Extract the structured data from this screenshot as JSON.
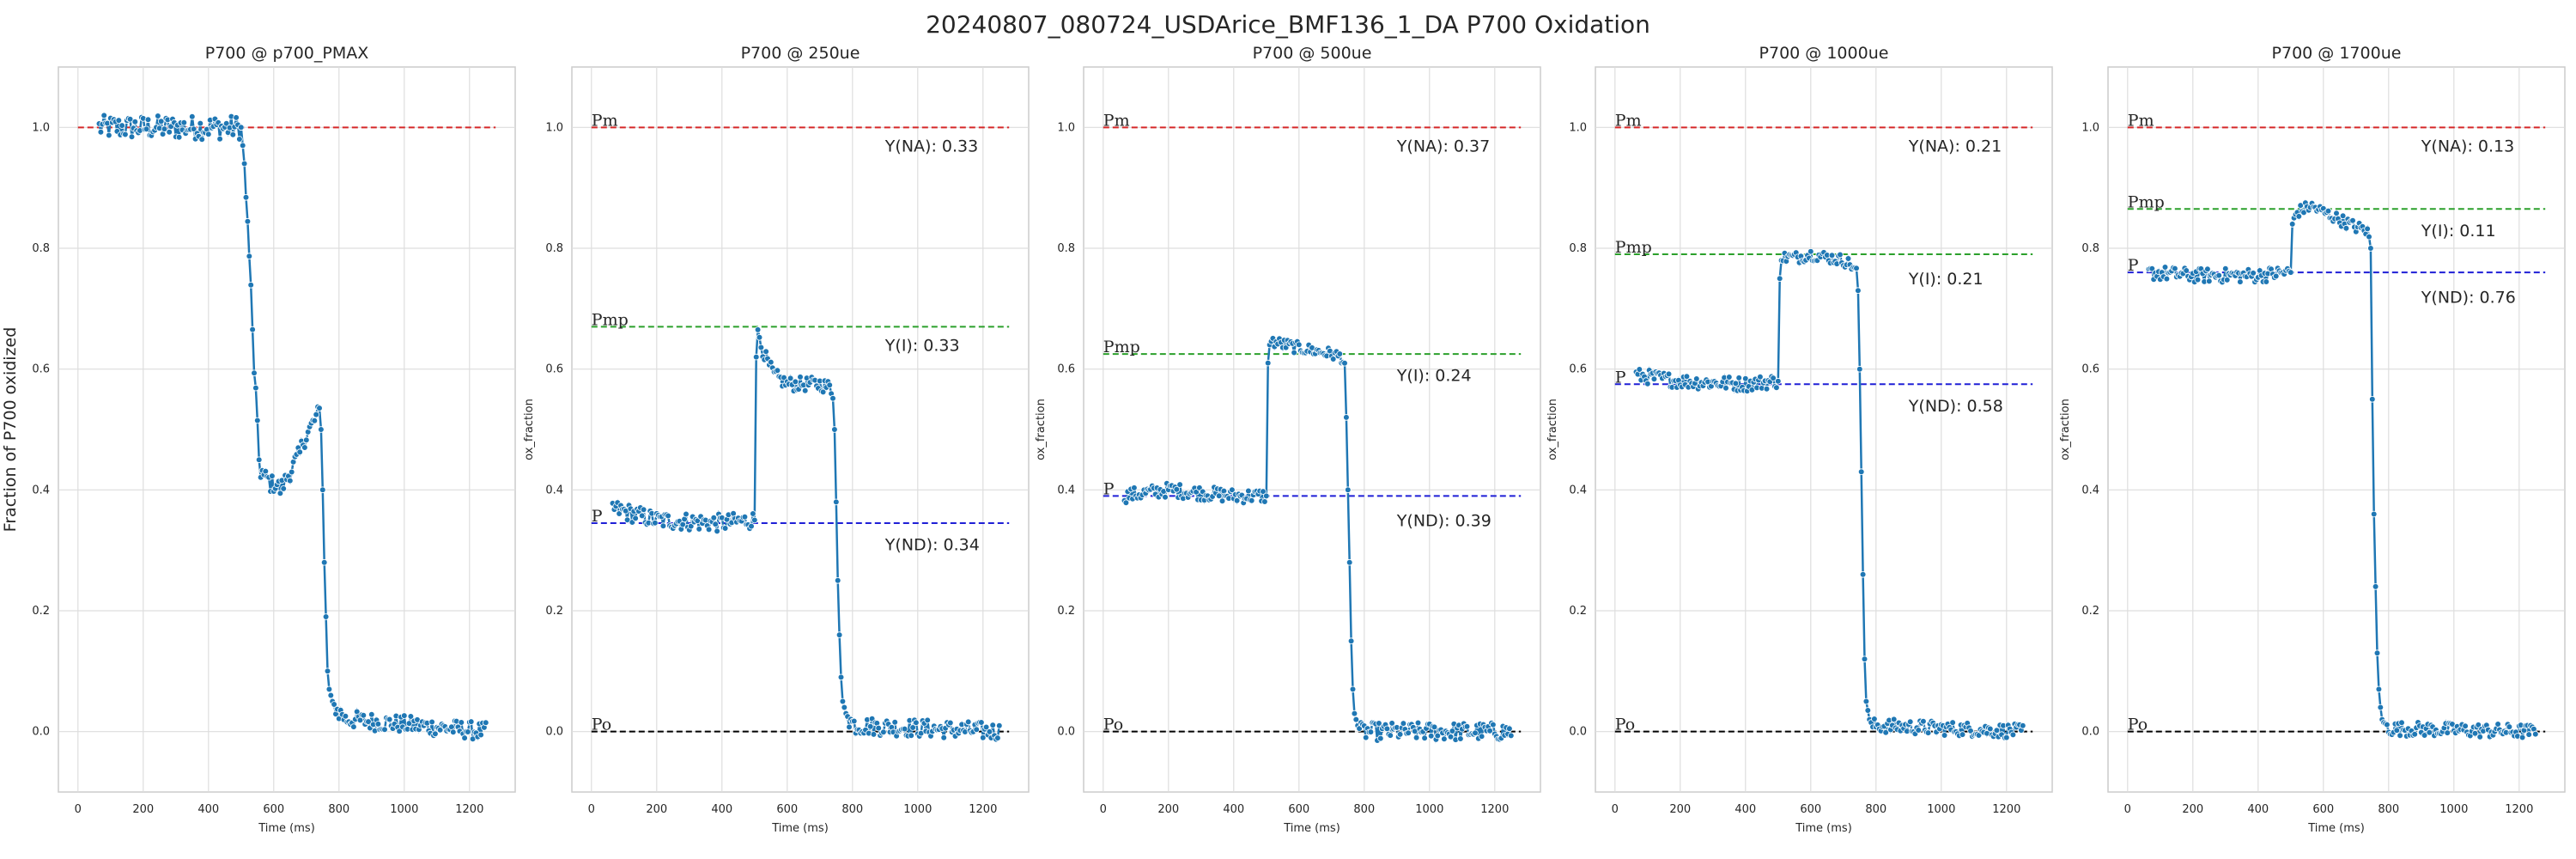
{
  "figure": {
    "title": "20240807_080724_USDArice_BMF136_1_DA P700 Oxidation"
  },
  "colors": {
    "data_line": "#1f77b4",
    "data_marker_edge": "#ffffff",
    "Pm": "#d62728",
    "Pmp": "#2ca02c",
    "P": "#1f1fd6",
    "Po": "#000000",
    "grid": "#dddddd",
    "axes_edge": "#cccccc",
    "text": "#262626"
  },
  "chart_data": [
    {
      "type": "line",
      "title": "P700 @ p700_PMAX",
      "xlabel": "Time (ms)",
      "ylabel": "Fraction of P700 oxidized",
      "xlim": [
        -60,
        1340
      ],
      "ylim": [
        -0.1,
        1.1
      ],
      "xticks": [
        0,
        200,
        400,
        600,
        800,
        1000,
        1200
      ],
      "yticks": [
        0.0,
        0.2,
        0.4,
        0.6,
        0.8,
        1.0
      ],
      "grid": true,
      "series": [
        {
          "x": [
            60,
            500,
            505,
            510,
            515,
            520,
            525,
            530,
            535,
            540,
            545,
            550,
            555,
            560,
            565,
            570,
            580,
            590,
            600,
            610,
            620,
            630,
            640,
            650,
            660,
            670,
            680,
            690,
            700,
            710,
            720,
            730,
            740,
            745,
            750,
            755,
            760,
            765,
            770,
            780,
            790,
            800,
            810,
            820,
            830,
            1250
          ],
          "y": [
            1.0,
            1.0,
            0.97,
            0.94,
            0.88,
            0.84,
            0.79,
            0.73,
            0.66,
            0.6,
            0.56,
            0.5,
            0.45,
            0.43,
            0.43,
            0.42,
            0.42,
            0.41,
            0.41,
            0.41,
            0.4,
            0.41,
            0.42,
            0.43,
            0.44,
            0.45,
            0.46,
            0.48,
            0.49,
            0.5,
            0.51,
            0.52,
            0.53,
            0.5,
            0.4,
            0.28,
            0.19,
            0.1,
            0.07,
            0.05,
            0.04,
            0.03,
            0.03,
            0.02,
            0.02,
            0.0
          ],
          "noise": [
            0.02,
            0.015,
            0.015
          ]
        }
      ],
      "reference_lines": [
        {
          "key": "Pm",
          "y": 1.0,
          "label": ""
        }
      ],
      "annotations": []
    },
    {
      "type": "line",
      "title": "P700 @ 250ue",
      "xlabel": "Time (ms)",
      "ylabel": "ox_fraction",
      "xlim": [
        -60,
        1340
      ],
      "ylim": [
        -0.1,
        1.1
      ],
      "xticks": [
        0,
        200,
        400,
        600,
        800,
        1000,
        1200
      ],
      "yticks": [
        0.0,
        0.2,
        0.4,
        0.6,
        0.8,
        1.0
      ],
      "grid": true,
      "series": [
        {
          "x": [
            60,
            200,
            400,
            490,
            500,
            505,
            510,
            520,
            540,
            560,
            600,
            700,
            730,
            740,
            745,
            750,
            755,
            760,
            765,
            770,
            780,
            790,
            800,
            810,
            1250
          ],
          "y": [
            0.37,
            0.35,
            0.345,
            0.35,
            0.35,
            0.62,
            0.665,
            0.64,
            0.61,
            0.59,
            0.575,
            0.575,
            0.57,
            0.56,
            0.5,
            0.38,
            0.25,
            0.16,
            0.09,
            0.05,
            0.03,
            0.02,
            0.015,
            0.01,
            0.0
          ],
          "noise": [
            0.015,
            0.012,
            0.015
          ]
        }
      ],
      "reference_lines": [
        {
          "key": "Pm",
          "y": 1.0,
          "label": "Pm"
        },
        {
          "key": "Pmp",
          "y": 0.67,
          "label": "Pmp"
        },
        {
          "key": "P",
          "y": 0.345,
          "label": "P"
        },
        {
          "key": "Po",
          "y": 0.0,
          "label": "Po"
        }
      ],
      "annotations": [
        {
          "text": "Y(NA): 0.33",
          "x": 900,
          "y": 0.96
        },
        {
          "text": "Y(I): 0.33",
          "x": 900,
          "y": 0.63
        },
        {
          "text": "Y(ND): 0.34",
          "x": 900,
          "y": 0.3
        }
      ]
    },
    {
      "type": "line",
      "title": "P700 @ 500ue",
      "xlabel": "Time (ms)",
      "ylabel": "ox_fraction",
      "xlim": [
        -60,
        1340
      ],
      "ylim": [
        -0.1,
        1.1
      ],
      "xticks": [
        0,
        200,
        400,
        600,
        800,
        1000,
        1200
      ],
      "yticks": [
        0.0,
        0.2,
        0.4,
        0.6,
        0.8,
        1.0
      ],
      "grid": true,
      "series": [
        {
          "x": [
            60,
            200,
            400,
            490,
            500,
            505,
            510,
            520,
            560,
            600,
            700,
            730,
            740,
            745,
            750,
            755,
            760,
            765,
            770,
            780,
            790,
            800,
            1250
          ],
          "y": [
            0.39,
            0.4,
            0.39,
            0.39,
            0.39,
            0.61,
            0.64,
            0.645,
            0.64,
            0.635,
            0.625,
            0.62,
            0.61,
            0.52,
            0.4,
            0.28,
            0.15,
            0.07,
            0.03,
            0.01,
            0.0,
            0.0,
            0.0
          ],
          "noise": [
            0.012,
            0.01,
            0.015
          ]
        }
      ],
      "reference_lines": [
        {
          "key": "Pm",
          "y": 1.0,
          "label": "Pm"
        },
        {
          "key": "Pmp",
          "y": 0.625,
          "label": "Pmp"
        },
        {
          "key": "P",
          "y": 0.39,
          "label": "P"
        },
        {
          "key": "Po",
          "y": 0.0,
          "label": "Po"
        }
      ],
      "annotations": [
        {
          "text": "Y(NA): 0.37",
          "x": 900,
          "y": 0.96
        },
        {
          "text": "Y(I): 0.24",
          "x": 900,
          "y": 0.58
        },
        {
          "text": "Y(ND): 0.39",
          "x": 900,
          "y": 0.34
        }
      ]
    },
    {
      "type": "line",
      "title": "P700 @ 1000ue",
      "xlabel": "Time (ms)",
      "ylabel": "ox_fraction",
      "xlim": [
        -60,
        1340
      ],
      "ylim": [
        -0.1,
        1.1
      ],
      "xticks": [
        0,
        200,
        400,
        600,
        800,
        1000,
        1200
      ],
      "yticks": [
        0.0,
        0.2,
        0.4,
        0.6,
        0.8,
        1.0
      ],
      "grid": true,
      "series": [
        {
          "x": [
            60,
            200,
            400,
            490,
            500,
            505,
            510,
            520,
            560,
            600,
            700,
            730,
            740,
            745,
            750,
            755,
            760,
            765,
            770,
            780,
            790,
            800,
            1250
          ],
          "y": [
            0.59,
            0.58,
            0.575,
            0.58,
            0.58,
            0.75,
            0.78,
            0.785,
            0.785,
            0.79,
            0.78,
            0.77,
            0.76,
            0.73,
            0.6,
            0.43,
            0.26,
            0.12,
            0.05,
            0.02,
            0.01,
            0.01,
            0.0
          ],
          "noise": [
            0.012,
            0.01,
            0.012
          ]
        }
      ],
      "reference_lines": [
        {
          "key": "Pm",
          "y": 1.0,
          "label": "Pm"
        },
        {
          "key": "Pmp",
          "y": 0.79,
          "label": "Pmp"
        },
        {
          "key": "P",
          "y": 0.575,
          "label": "P"
        },
        {
          "key": "Po",
          "y": 0.0,
          "label": "Po"
        }
      ],
      "annotations": [
        {
          "text": "Y(NA): 0.21",
          "x": 900,
          "y": 0.96
        },
        {
          "text": "Y(I): 0.21",
          "x": 900,
          "y": 0.74
        },
        {
          "text": "Y(ND): 0.58",
          "x": 900,
          "y": 0.53
        }
      ]
    },
    {
      "type": "line",
      "title": "P700 @ 1700ue",
      "xlabel": "Time (ms)",
      "ylabel": "ox_fraction",
      "xlim": [
        -60,
        1340
      ],
      "ylim": [
        -0.1,
        1.1
      ],
      "xticks": [
        0,
        200,
        400,
        600,
        800,
        1000,
        1200
      ],
      "yticks": [
        0.0,
        0.2,
        0.4,
        0.6,
        0.8,
        1.0
      ],
      "grid": true,
      "series": [
        {
          "x": [
            60,
            200,
            400,
            490,
            500,
            505,
            510,
            520,
            560,
            600,
            700,
            730,
            740,
            745,
            750,
            755,
            760,
            765,
            770,
            775,
            780,
            790,
            800,
            1250
          ],
          "y": [
            0.76,
            0.755,
            0.755,
            0.76,
            0.76,
            0.84,
            0.85,
            0.86,
            0.87,
            0.86,
            0.835,
            0.83,
            0.82,
            0.8,
            0.55,
            0.36,
            0.24,
            0.13,
            0.07,
            0.04,
            0.02,
            0.01,
            0.005,
            0.0
          ],
          "noise": [
            0.012,
            0.01,
            0.012
          ]
        }
      ],
      "reference_lines": [
        {
          "key": "Pm",
          "y": 1.0,
          "label": "Pm"
        },
        {
          "key": "Pmp",
          "y": 0.865,
          "label": "Pmp"
        },
        {
          "key": "P",
          "y": 0.76,
          "label": "P"
        },
        {
          "key": "Po",
          "y": 0.0,
          "label": "Po"
        }
      ],
      "annotations": [
        {
          "text": "Y(NA): 0.13",
          "x": 900,
          "y": 0.96
        },
        {
          "text": "Y(I): 0.11",
          "x": 900,
          "y": 0.82
        },
        {
          "text": "Y(ND): 0.76",
          "x": 900,
          "y": 0.71
        }
      ]
    }
  ]
}
